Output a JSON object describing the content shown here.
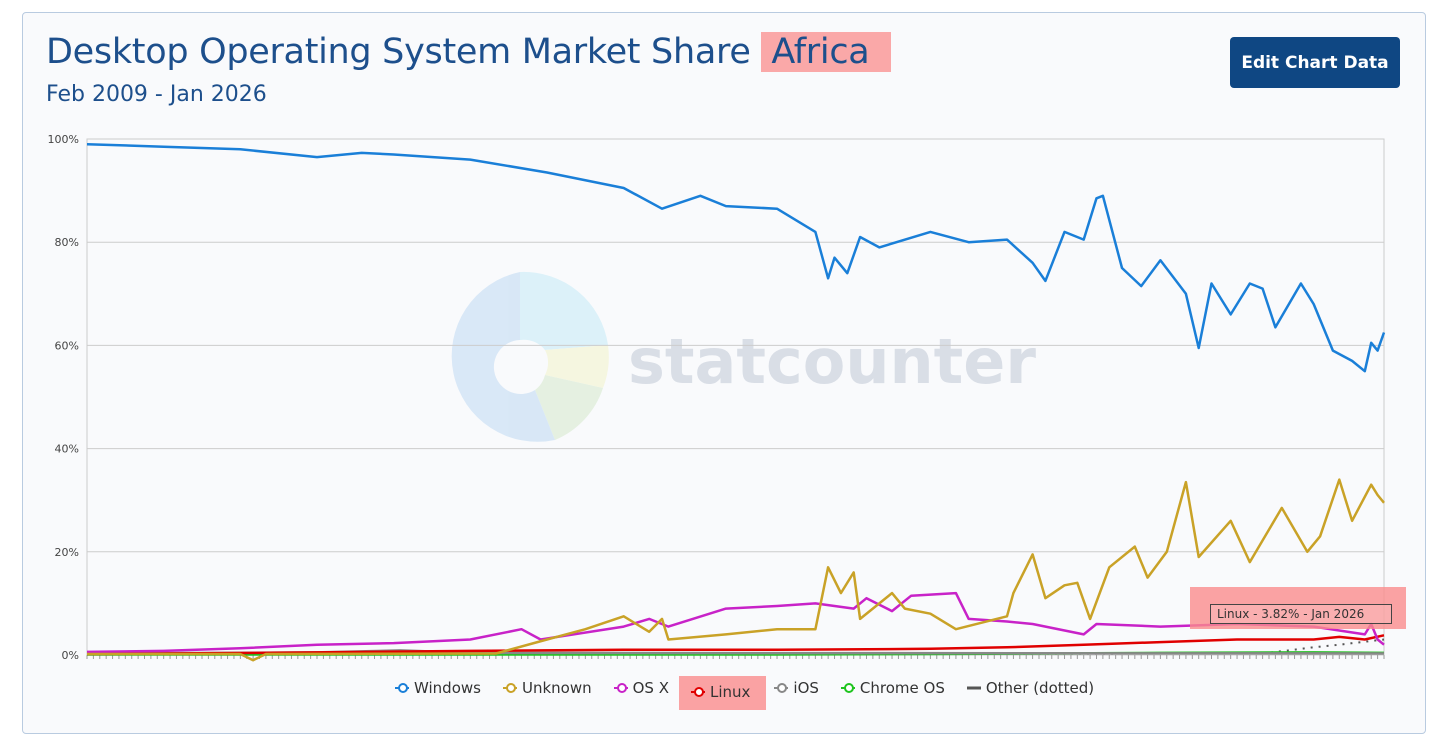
{
  "header": {
    "title": "Desktop Operating System Market Share",
    "region": "Africa",
    "subtitle": "Feb 2009 - Jan 2026",
    "edit_button": "Edit Chart Data"
  },
  "tooltip": {
    "text": "Linux - 3.82% - Jan 2026"
  },
  "watermark": "statcounter",
  "chart_data": {
    "type": "line",
    "title": "Desktop Operating System Market Share Africa",
    "xlabel": "",
    "ylabel": "",
    "xlim": [
      "2009-02",
      "2026-01"
    ],
    "ylim": [
      0,
      100
    ],
    "yticks": [
      "0%",
      "20%",
      "40%",
      "60%",
      "80%",
      "100%"
    ],
    "grid": true,
    "legend_position": "bottom",
    "series": [
      {
        "name": "Windows",
        "color": "#1a7fd8",
        "points": [
          [
            "2009-02",
            99
          ],
          [
            "2010-02",
            98.5
          ],
          [
            "2011-02",
            98
          ],
          [
            "2012-02",
            96.5
          ],
          [
            "2012-09",
            97.3
          ],
          [
            "2013-02",
            97
          ],
          [
            "2014-02",
            96
          ],
          [
            "2015-02",
            93.5
          ],
          [
            "2016-02",
            90.5
          ],
          [
            "2016-08",
            86.5
          ],
          [
            "2017-02",
            89
          ],
          [
            "2017-06",
            87
          ],
          [
            "2018-02",
            86.5
          ],
          [
            "2018-08",
            82
          ],
          [
            "2018-10",
            73
          ],
          [
            "2018-11",
            77
          ],
          [
            "2019-01",
            74
          ],
          [
            "2019-03",
            81
          ],
          [
            "2019-06",
            79
          ],
          [
            "2020-02",
            82
          ],
          [
            "2020-08",
            80
          ],
          [
            "2021-02",
            80.5
          ],
          [
            "2021-06",
            76
          ],
          [
            "2021-08",
            72.5
          ],
          [
            "2021-11",
            82
          ],
          [
            "2022-02",
            80.5
          ],
          [
            "2022-04",
            88.5
          ],
          [
            "2022-05",
            89
          ],
          [
            "2022-08",
            75
          ],
          [
            "2022-11",
            71.5
          ],
          [
            "2023-02",
            76.5
          ],
          [
            "2023-06",
            70
          ],
          [
            "2023-08",
            59.5
          ],
          [
            "2023-10",
            72
          ],
          [
            "2024-01",
            66
          ],
          [
            "2024-04",
            72
          ],
          [
            "2024-06",
            71
          ],
          [
            "2024-08",
            63.5
          ],
          [
            "2024-12",
            72
          ],
          [
            "2025-02",
            68
          ],
          [
            "2025-05",
            59
          ],
          [
            "2025-08",
            57
          ],
          [
            "2025-10",
            55
          ],
          [
            "2025-11",
            60.5
          ],
          [
            "2025-12",
            59
          ],
          [
            "2026-01",
            62.5
          ]
        ]
      },
      {
        "name": "Unknown",
        "color": "#c9a227",
        "points": [
          [
            "2009-02",
            0.2
          ],
          [
            "2011-02",
            0.2
          ],
          [
            "2011-04",
            -1
          ],
          [
            "2011-06",
            0.2
          ],
          [
            "2014-06",
            0.3
          ],
          [
            "2015-02",
            3
          ],
          [
            "2015-08",
            5
          ],
          [
            "2016-02",
            7.5
          ],
          [
            "2016-06",
            4.5
          ],
          [
            "2016-08",
            7
          ],
          [
            "2016-09",
            3
          ],
          [
            "2017-06",
            4
          ],
          [
            "2018-02",
            5
          ],
          [
            "2018-08",
            5
          ],
          [
            "2018-10",
            17
          ],
          [
            "2018-12",
            12
          ],
          [
            "2019-02",
            16
          ],
          [
            "2019-03",
            7
          ],
          [
            "2019-08",
            12
          ],
          [
            "2019-10",
            9
          ],
          [
            "2020-02",
            8
          ],
          [
            "2020-06",
            5
          ],
          [
            "2021-02",
            7.5
          ],
          [
            "2021-03",
            12
          ],
          [
            "2021-06",
            19.5
          ],
          [
            "2021-08",
            11
          ],
          [
            "2021-11",
            13.5
          ],
          [
            "2022-01",
            14
          ],
          [
            "2022-03",
            7
          ],
          [
            "2022-06",
            17
          ],
          [
            "2022-10",
            21
          ],
          [
            "2022-12",
            15
          ],
          [
            "2023-03",
            20
          ],
          [
            "2023-06",
            33.5
          ],
          [
            "2023-08",
            19
          ],
          [
            "2024-01",
            26
          ],
          [
            "2024-04",
            18
          ],
          [
            "2024-09",
            28.5
          ],
          [
            "2025-01",
            20
          ],
          [
            "2025-03",
            23
          ],
          [
            "2025-06",
            34
          ],
          [
            "2025-08",
            26
          ],
          [
            "2025-11",
            33
          ],
          [
            "2025-12",
            31
          ],
          [
            "2026-01",
            29.5
          ]
        ]
      },
      {
        "name": "OS X",
        "color": "#c822c8",
        "points": [
          [
            "2009-02",
            0.6
          ],
          [
            "2010-02",
            0.8
          ],
          [
            "2011-02",
            1.3
          ],
          [
            "2012-02",
            2
          ],
          [
            "2013-02",
            2.3
          ],
          [
            "2014-02",
            3
          ],
          [
            "2014-10",
            5
          ],
          [
            "2015-01",
            3
          ],
          [
            "2016-02",
            5.5
          ],
          [
            "2016-06",
            7
          ],
          [
            "2016-09",
            5.5
          ],
          [
            "2017-06",
            9
          ],
          [
            "2018-02",
            9.5
          ],
          [
            "2018-08",
            10
          ],
          [
            "2019-02",
            9
          ],
          [
            "2019-04",
            11
          ],
          [
            "2019-08",
            8.5
          ],
          [
            "2019-11",
            11.5
          ],
          [
            "2020-06",
            12
          ],
          [
            "2020-08",
            7
          ],
          [
            "2021-02",
            6.5
          ],
          [
            "2021-06",
            6
          ],
          [
            "2022-02",
            4
          ],
          [
            "2022-04",
            6
          ],
          [
            "2023-02",
            5.5
          ],
          [
            "2024-02",
            6
          ],
          [
            "2025-02",
            5.5
          ],
          [
            "2025-10",
            4
          ],
          [
            "2025-11",
            6
          ],
          [
            "2025-12",
            3
          ],
          [
            "2026-01",
            2
          ]
        ]
      },
      {
        "name": "Linux",
        "color": "#e00000",
        "points": [
          [
            "2009-02",
            0.2
          ],
          [
            "2012-02",
            0.5
          ],
          [
            "2014-02",
            0.8
          ],
          [
            "2016-02",
            1
          ],
          [
            "2018-02",
            1
          ],
          [
            "2020-02",
            1.2
          ],
          [
            "2021-02",
            1.5
          ],
          [
            "2022-02",
            2
          ],
          [
            "2023-02",
            2.5
          ],
          [
            "2024-02",
            3
          ],
          [
            "2025-02",
            3
          ],
          [
            "2025-06",
            3.5
          ],
          [
            "2025-10",
            3
          ],
          [
            "2026-01",
            3.82
          ]
        ]
      },
      {
        "name": "iOS",
        "color": "#888888",
        "points": [
          [
            "2009-02",
            0.3
          ],
          [
            "2012-02",
            0.5
          ],
          [
            "2013-03",
            0.9
          ],
          [
            "2014-02",
            0.4
          ],
          [
            "2026-01",
            0.3
          ]
        ]
      },
      {
        "name": "Chrome OS",
        "color": "#1fc41f",
        "points": [
          [
            "2009-02",
            0.1
          ],
          [
            "2018-02",
            0.1
          ],
          [
            "2020-02",
            0.2
          ],
          [
            "2023-02",
            0.4
          ],
          [
            "2025-02",
            0.5
          ],
          [
            "2026-01",
            0.4
          ]
        ]
      },
      {
        "name": "Other (dotted)",
        "color": "#555555",
        "dotted": true,
        "points": [
          [
            "2009-02",
            0.2
          ],
          [
            "2024-06",
            0.3
          ],
          [
            "2025-02",
            1.5
          ],
          [
            "2025-06",
            2
          ],
          [
            "2026-01",
            3
          ]
        ]
      }
    ]
  }
}
